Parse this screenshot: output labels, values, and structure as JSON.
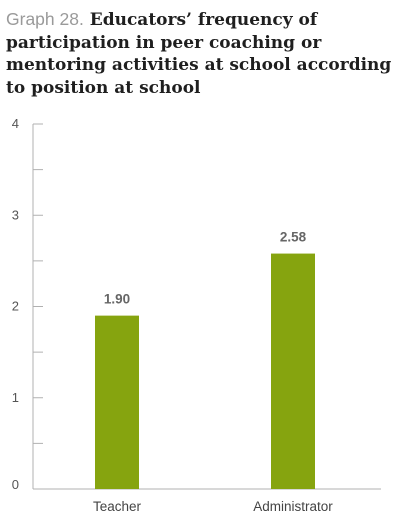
{
  "title_prefix": "Graph 28.",
  "title": "Educators’ frequency of participation in peer coaching or mentoring activities at school according to position at school",
  "chart_data": {
    "type": "bar",
    "categories": [
      "Teacher",
      "Administrator"
    ],
    "values": [
      1.9,
      2.58
    ],
    "value_labels": [
      "1.90",
      "2.58"
    ],
    "ylim": [
      0,
      4
    ],
    "yticks": [
      "0",
      "1",
      "2",
      "3",
      "4"
    ],
    "bar_color": "#86a40f",
    "axis_color": "#b0b0b0",
    "grid": false
  }
}
